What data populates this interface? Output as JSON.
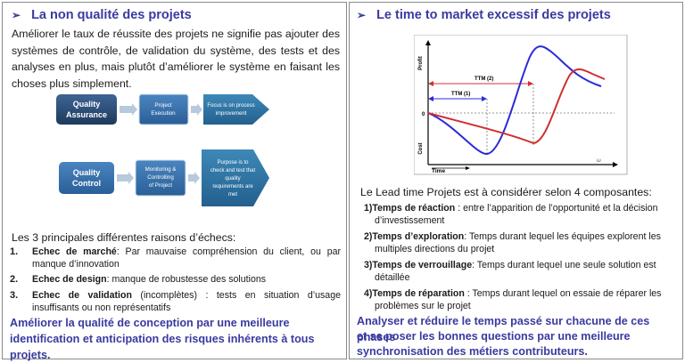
{
  "left": {
    "title": "La non qualité des projets",
    "intro": "Améliorer le taux de réussite des projets ne signifie pas ajouter des systèmes de contrôle, de validation du système, des tests et des analyses en plus, mais plutôt d’améliorer le système en faisant les choses plus simplement.",
    "diagram": {
      "qa_label_1": "Quality",
      "qa_label_2": "Assurance",
      "qa_step_1": "Project",
      "qa_step_2": "Execution",
      "qa_focus_1": "Focus is on process",
      "qa_focus_2": "improvement",
      "qc_label_1": "Quality",
      "qc_label_2": "Control",
      "qc_step_1": "Monitoring &",
      "qc_step_2": "Controlling",
      "qc_step_3": "of Project",
      "qc_purpose_1": "Purpose is to",
      "qc_purpose_2": "check and test that",
      "qc_purpose_3": "quality",
      "qc_purpose_4": "requirements are",
      "qc_purpose_5": "met"
    },
    "reasons_intro": "Les 3 principales différentes raisons d’échecs:",
    "reasons": [
      {
        "num": "1.",
        "term": "Echec de marché",
        "rest": ": Par mauvaise compréhension du client, ou par",
        "line2": "manque d’innovation"
      },
      {
        "num": "2.",
        "term": "Echec de design",
        "rest": ": manque de robustesse des solutions",
        "line2": ""
      },
      {
        "num": "3.",
        "term": "Echec de validation",
        "rest": " (incomplètes) : tests en situation d’usage",
        "line2": "insuffisants ou non représentatifs"
      }
    ],
    "conclusion_1": "Améliorer la qualité de conception par une meilleure",
    "conclusion_2": "identification et anticipation des risques inhérents à tous projets."
  },
  "right": {
    "title": "Le time to market excessif des projets",
    "chart": {
      "y_label_top": "Profit",
      "y_label_bottom": "Cost",
      "zero_label": "0",
      "x_label": "Time",
      "ttm2": "TTM (2)",
      "ttm1": "TTM (1)",
      "corner": "ω"
    },
    "lead": "Le  Lead time Projets est à considérer selon 4 composantes:",
    "components": [
      {
        "num": "1)",
        "term": "Temps de réaction",
        "rest": " : entre l’apparition de l’opportunité et la décision",
        "line2": "d’investissement"
      },
      {
        "num": "2)",
        "term": "Temps d’exploration",
        "rest": ":  Temps durant lequel les équipes explorent les",
        "line2": "multiples directions du projet"
      },
      {
        "num": "3)",
        "term": "Temps de verrouillage",
        "rest": ": Temps durant lequel une seule solution est",
        "line2": "détaillée"
      },
      {
        "num": "4)",
        "term": "Temps de réparation",
        "rest": " : Temps durant lequel on essaie de réparer les",
        "line2": "problèmes sur le projet"
      }
    ],
    "conclusion_1": "Analyser et réduire le temps passé sur chacune de ces phases",
    "conclusion_2": "et se poser les bonnes questions par une meilleure",
    "conclusion_3": "synchronisation des métiers contributeurs."
  },
  "colors": {
    "heading": "#3a3aa0",
    "navy": "#1f3a5f",
    "arrow_blue": "#2e6aa8",
    "teal": "#2f6f9f",
    "curve_blue": "#2a2ad8",
    "curve_red": "#d03030"
  }
}
